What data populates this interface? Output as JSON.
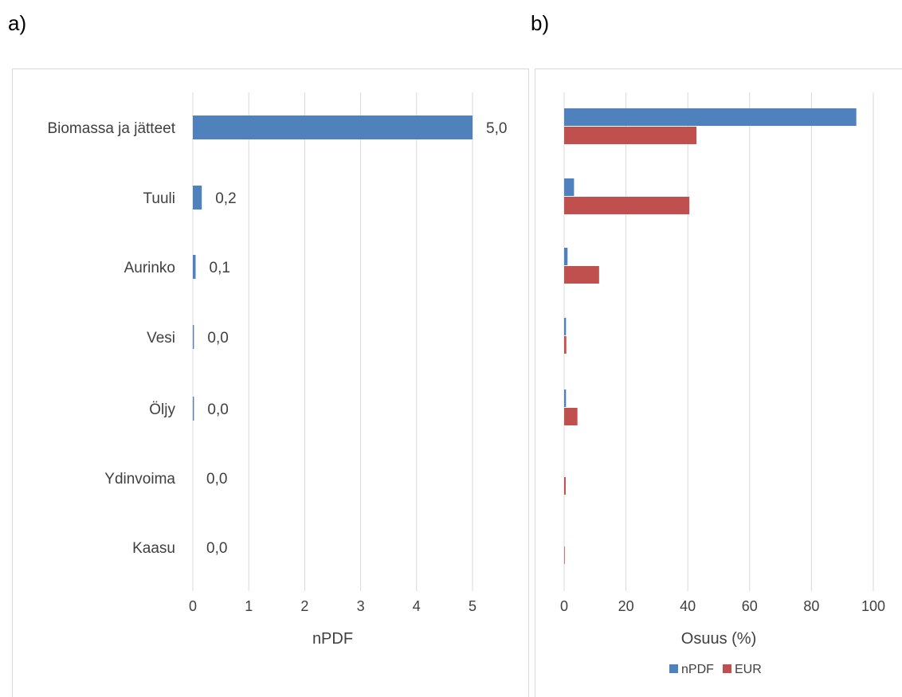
{
  "panels": {
    "a_label": "a)",
    "b_label": "b)"
  },
  "colors": {
    "npdf": "#4f81bd",
    "eur": "#c0504d",
    "grid": "#d9d9d9",
    "text": "#404040"
  },
  "chart_data": [
    {
      "type": "bar",
      "orientation": "horizontal",
      "categories": [
        "Biomassa ja jätteet",
        "Tuuli",
        "Aurinko",
        "Vesi",
        "Öljy",
        "Ydinvoima",
        "Kaasu"
      ],
      "values": [
        5.0,
        0.16,
        0.05,
        0.02,
        0.02,
        0.0,
        0.0
      ],
      "data_labels": [
        "5,0",
        "0,2",
        "0,1",
        "0,0",
        "0,0",
        "0,0",
        "0,0"
      ],
      "xlabel": "nPDF",
      "xlim": [
        0,
        5
      ],
      "xticks": [
        "0",
        "1",
        "2",
        "3",
        "4",
        "5"
      ],
      "grid": true,
      "legend": "none"
    },
    {
      "type": "bar",
      "orientation": "horizontal",
      "categories": [
        "Biomassa ja jätteet",
        "Tuuli",
        "Aurinko",
        "Vesi",
        "Öljy",
        "Ydinvoima",
        "Kaasu"
      ],
      "series": [
        {
          "name": "nPDF",
          "color": "#4f81bd",
          "values": [
            94.5,
            3.2,
            1.1,
            0.6,
            0.6,
            0.0,
            0.0
          ]
        },
        {
          "name": "EUR",
          "color": "#c0504d",
          "values": [
            42.8,
            40.5,
            11.3,
            0.7,
            4.3,
            0.5,
            0.2
          ]
        }
      ],
      "xlabel": "Osuus (%)",
      "xlim": [
        0,
        100
      ],
      "xticks": [
        "0",
        "20",
        "40",
        "60",
        "80",
        "100"
      ],
      "grid": true,
      "legend": "bottom"
    }
  ]
}
